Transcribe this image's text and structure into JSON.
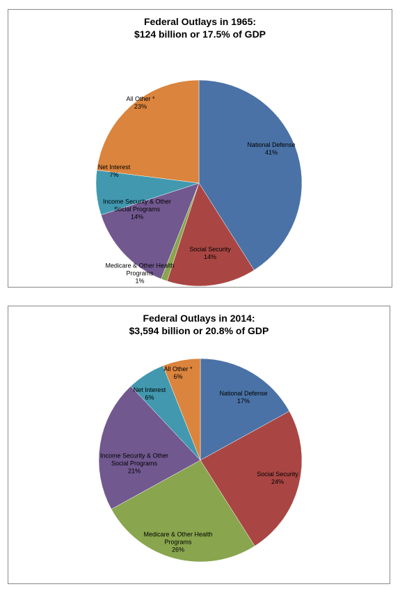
{
  "chart_data": [
    {
      "type": "pie",
      "title": "Federal Outlays in 1965:",
      "subtitle": "$124 billion or 17.5% of GDP",
      "categories": [
        "National Defense",
        "Social Security",
        "Medicare & Other Health Programs",
        "Income Security & Other Social Programs",
        "Net Interest",
        "All Other *"
      ],
      "values": [
        41,
        14,
        1,
        14,
        7,
        23
      ],
      "value_labels": [
        "41%",
        "14%",
        "1%",
        "14%",
        "7%",
        "23%"
      ],
      "colors": [
        "#4a72a6",
        "#a94643",
        "#89a54e",
        "#71588f",
        "#4198af",
        "#db843d"
      ]
    },
    {
      "type": "pie",
      "title": "Federal Outlays in 2014:",
      "subtitle": "$3,594 billion or 20.8% of GDP",
      "categories": [
        "National Defense",
        "Social Security",
        "Medicare & Other Health Programs",
        "Income Security & Other Social Programs",
        "Net Interest",
        "All Other *"
      ],
      "values": [
        17,
        24,
        26,
        21,
        6,
        6
      ],
      "value_labels": [
        "17%",
        "24%",
        "26%",
        "21%",
        "6%",
        "6%"
      ],
      "colors": [
        "#4a72a6",
        "#a94643",
        "#89a54e",
        "#71588f",
        "#4198af",
        "#db843d"
      ]
    }
  ]
}
